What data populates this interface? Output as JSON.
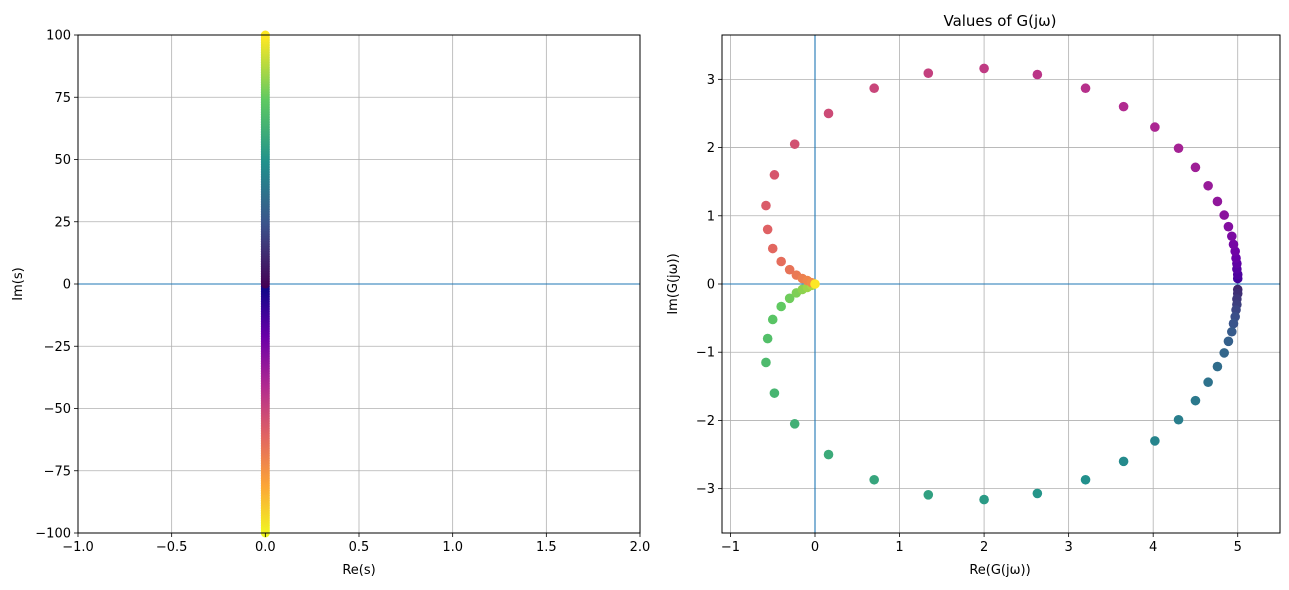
{
  "chart_data": [
    {
      "type": "scatter",
      "title": "",
      "xlabel": "Re(s)",
      "ylabel": "Im(s)",
      "xlim": [
        -1.0,
        2.0
      ],
      "ylim": [
        -100,
        100
      ],
      "xticks": [
        -1.0,
        -0.5,
        0.0,
        0.5,
        1.0,
        1.5,
        2.0
      ],
      "xtick_labels": [
        "−1.0",
        "−0.5",
        "0.0",
        "0.5",
        "1.0",
        "1.5",
        "2.0"
      ],
      "yticks": [
        -100,
        -75,
        -50,
        -25,
        0,
        25,
        50,
        75,
        100
      ],
      "ytick_labels": [
        "−100",
        "−75",
        "−50",
        "−25",
        "0",
        "25",
        "50",
        "75",
        "100"
      ],
      "grid": true,
      "reference_lines": {
        "horizontal": [
          0
        ]
      },
      "colormap": "colored by frequency index (plasma for negative ω, viridis for positive ω)",
      "series": [
        {
          "x": 0.0,
          "y": [
            -100,
            -95,
            -90,
            -85,
            -80,
            -75,
            -70,
            -65,
            -60,
            -55,
            -50,
            -45,
            -40,
            -35,
            -30,
            -25,
            -20,
            -15,
            -10,
            -5,
            -2,
            0,
            2,
            5,
            10,
            15,
            20,
            25,
            30,
            35,
            40,
            45,
            50,
            55,
            60,
            65,
            70,
            75,
            80,
            85,
            90,
            95,
            100
          ]
        }
      ]
    },
    {
      "type": "scatter",
      "title": "Values of G(jω)",
      "xlabel": "Re(G(jω))",
      "ylabel": "Im(G(jω))",
      "xlim": [
        -1.1,
        5.5
      ],
      "ylim": [
        -3.65,
        3.65
      ],
      "xticks": [
        -1,
        0,
        1,
        2,
        3,
        4,
        5
      ],
      "xtick_labels": [
        "−1",
        "0",
        "1",
        "2",
        "3",
        "4",
        "5"
      ],
      "yticks": [
        -3,
        -2,
        -1,
        0,
        1,
        2,
        3
      ],
      "ytick_labels": [
        "−3",
        "−2",
        "−1",
        "0",
        "1",
        "2",
        "3"
      ],
      "grid": true,
      "reference_lines": {
        "horizontal": [
          0
        ],
        "vertical": [
          0
        ]
      },
      "series": [
        {
          "name": "",
          "points": [
            [
              5.0,
              0.08
            ],
            [
              5.0,
              0.14
            ],
            [
              4.99,
              0.22
            ],
            [
              4.99,
              0.3
            ],
            [
              4.98,
              0.38
            ],
            [
              4.97,
              0.48
            ],
            [
              4.95,
              0.58
            ],
            [
              4.93,
              0.7
            ],
            [
              4.89,
              0.84
            ],
            [
              4.84,
              1.01
            ],
            [
              4.76,
              1.21
            ],
            [
              4.65,
              1.44
            ],
            [
              4.5,
              1.71
            ],
            [
              4.3,
              1.99
            ],
            [
              4.02,
              2.3
            ],
            [
              3.65,
              2.6
            ],
            [
              3.2,
              2.87
            ],
            [
              2.63,
              3.07
            ],
            [
              2.0,
              3.16
            ],
            [
              1.34,
              3.09
            ],
            [
              0.7,
              2.87
            ],
            [
              0.16,
              2.5
            ],
            [
              -0.24,
              2.05
            ],
            [
              -0.48,
              1.6
            ],
            [
              -0.58,
              1.15
            ],
            [
              -0.56,
              0.8
            ],
            [
              -0.5,
              0.52
            ],
            [
              -0.4,
              0.33
            ],
            [
              -0.3,
              0.21
            ],
            [
              -0.22,
              0.13
            ],
            [
              -0.15,
              0.08
            ],
            [
              -0.09,
              0.05
            ],
            [
              -0.04,
              0.02
            ],
            [
              0.0,
              0.0
            ],
            [
              5.0,
              -0.08
            ],
            [
              5.0,
              -0.14
            ],
            [
              4.99,
              -0.22
            ],
            [
              4.99,
              -0.3
            ],
            [
              4.98,
              -0.38
            ],
            [
              4.97,
              -0.48
            ],
            [
              4.95,
              -0.58
            ],
            [
              4.93,
              -0.7
            ],
            [
              4.89,
              -0.84
            ],
            [
              4.84,
              -1.01
            ],
            [
              4.76,
              -1.21
            ],
            [
              4.65,
              -1.44
            ],
            [
              4.5,
              -1.71
            ],
            [
              4.3,
              -1.99
            ],
            [
              4.02,
              -2.3
            ],
            [
              3.65,
              -2.6
            ],
            [
              3.2,
              -2.87
            ],
            [
              2.63,
              -3.07
            ],
            [
              2.0,
              -3.16
            ],
            [
              1.34,
              -3.09
            ],
            [
              0.7,
              -2.87
            ],
            [
              0.16,
              -2.5
            ],
            [
              -0.24,
              -2.05
            ],
            [
              -0.48,
              -1.6
            ],
            [
              -0.58,
              -1.15
            ],
            [
              -0.56,
              -0.8
            ],
            [
              -0.5,
              -0.52
            ],
            [
              -0.4,
              -0.33
            ],
            [
              -0.3,
              -0.21
            ],
            [
              -0.22,
              -0.13
            ],
            [
              -0.15,
              -0.08
            ],
            [
              -0.09,
              -0.05
            ],
            [
              -0.04,
              -0.02
            ]
          ]
        }
      ]
    }
  ],
  "colors": {
    "grid": "#b0b0b0",
    "reference_line": "#1f77b4",
    "axes": "#000000"
  }
}
